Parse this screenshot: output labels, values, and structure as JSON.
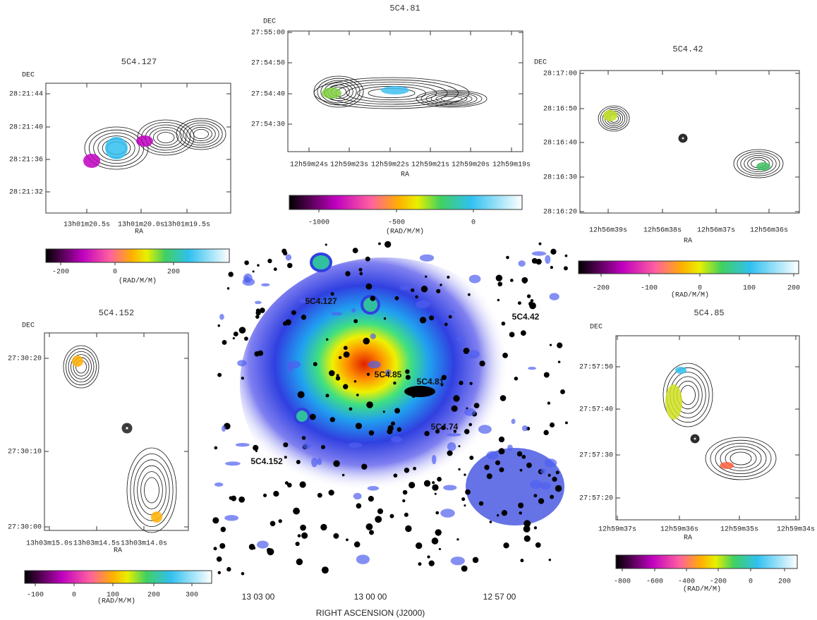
{
  "panels": [
    {
      "title": "5C4.127",
      "y_label": "DEC",
      "x_label": "RA",
      "y_ticks": [
        "28:21:44",
        "28:21:40",
        "28:21:36",
        "28:21:32"
      ],
      "x_ticks": [
        "13h01m20.5s",
        "13h01m20.0s",
        "13h01m19.5s"
      ],
      "colorbar": {
        "ticks": [
          -200,
          0,
          200
        ],
        "label": "(RAD/M/M)"
      }
    },
    {
      "title": "5C4.81",
      "y_label": "DEC",
      "x_label": "RA",
      "y_ticks": [
        "27:55:00",
        "27:54:50",
        "27:54:40",
        "27:54:30"
      ],
      "x_ticks": [
        "12h59m24s",
        "12h59m23s",
        "12h59m22s",
        "12h59m21s",
        "12h59m20s",
        "12h59m19s"
      ],
      "colorbar": {
        "ticks": [
          -1000,
          -500,
          0
        ],
        "label": "(RAD/M/M)"
      }
    },
    {
      "title": "5C4.42",
      "y_label": "DEC",
      "x_label": "RA",
      "y_ticks": [
        "28:17:00",
        "28:16:50",
        "28:16:40",
        "28:16:30",
        "28:16:20"
      ],
      "x_ticks": [
        "12h56m39s",
        "12h56m38s",
        "12h56m37s",
        "12h56m36s"
      ],
      "colorbar": {
        "ticks": [
          -200,
          -100,
          0,
          100,
          200
        ],
        "label": "(RAD/M/M)"
      }
    },
    {
      "title": "5C4.152",
      "y_label": "DEC",
      "x_label": "RA",
      "y_ticks": [
        "27:30:20",
        "27:30:10",
        "27:30:00"
      ],
      "x_ticks": [
        "13h03m15.0s",
        "13h03m14.5s",
        "13h03m14.0s"
      ],
      "colorbar": {
        "ticks": [
          -100,
          0,
          100,
          200,
          300
        ],
        "label": "(RAD/M/M)"
      }
    },
    {
      "title": "5C4.85",
      "y_label": "DEC",
      "x_label": "RA",
      "y_ticks": [
        "27:57:50",
        "27:57:40",
        "27:57:30",
        "27:57:20"
      ],
      "x_ticks": [
        "12h59m37s",
        "12h59m36s",
        "12h59m35s",
        "12h59m34s"
      ],
      "colorbar": {
        "ticks": [
          -800,
          -600,
          -400,
          -200,
          0,
          200
        ],
        "label": "(RAD/M/M)"
      }
    }
  ],
  "cluster_image": {
    "x_label": "RIGHT ASCENSION  (J2000)",
    "x_ticks": [
      "13 03 00",
      "13 00 00",
      "12 57 00"
    ],
    "sources": [
      "5C4.127",
      "5C4.42",
      "5C4.85",
      "5C4.81",
      "5C4.74",
      "5C4.152"
    ]
  }
}
